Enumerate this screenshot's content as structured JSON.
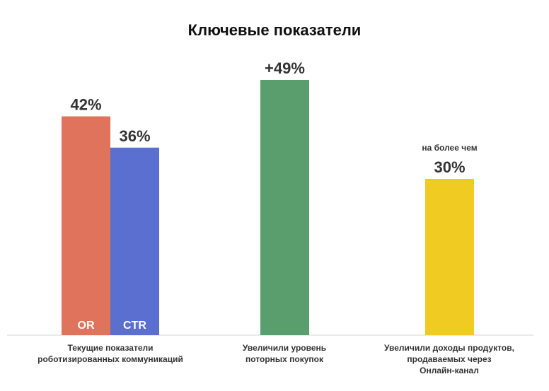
{
  "chart_data": {
    "type": "bar",
    "title": "Ключевые показатели",
    "categories": [
      [
        "Текущие показатели",
        "роботизированных коммуникаций"
      ],
      [
        "Увеличили уровень",
        "поторных покупок"
      ],
      [
        "Увеличили доходы продуктов,",
        "продаваемых через",
        "Онлайн-канал"
      ]
    ],
    "bars": [
      {
        "category": 0,
        "value": 42,
        "value_label": "42%",
        "bar_label": "OR",
        "color": "#e0735c"
      },
      {
        "category": 0,
        "value": 36,
        "value_label": "36%",
        "bar_label": "CTR",
        "color": "#5a6fcf"
      },
      {
        "category": 1,
        "value": 49,
        "value_label": "+49%",
        "bar_label": "",
        "color": "#5b9e6e"
      },
      {
        "category": 2,
        "value": 30,
        "value_label": "30%",
        "bar_label": "",
        "color": "#f0cb22",
        "note": "на более чем"
      }
    ],
    "ylim": [
      0,
      49
    ],
    "xlabel": "",
    "ylabel": "",
    "grid": false,
    "legend": "none"
  }
}
